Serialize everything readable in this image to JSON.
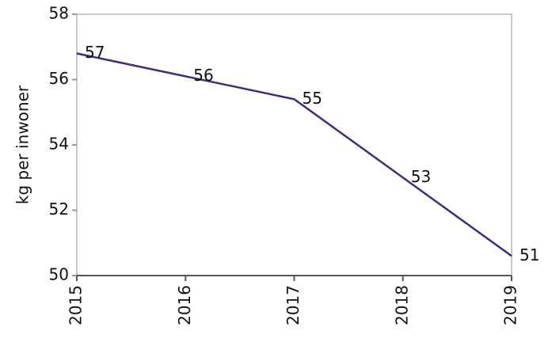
{
  "chart_data": {
    "type": "line",
    "y_label": "kg per inwoner",
    "x": [
      2015,
      2016,
      2017,
      2018,
      2019
    ],
    "series": [
      {
        "color": "#33337f",
        "values": [
          56.8,
          56.1,
          55.4,
          53.0,
          50.6
        ],
        "value_labels": [
          "57",
          "56",
          "55",
          "53",
          "51"
        ]
      }
    ],
    "xlim": [
      2015,
      2019
    ],
    "xticks": [
      2015,
      2016,
      2017,
      2018,
      2019
    ],
    "ylim": [
      50,
      58
    ],
    "yticks": [
      50,
      52,
      54,
      56,
      58
    ]
  }
}
